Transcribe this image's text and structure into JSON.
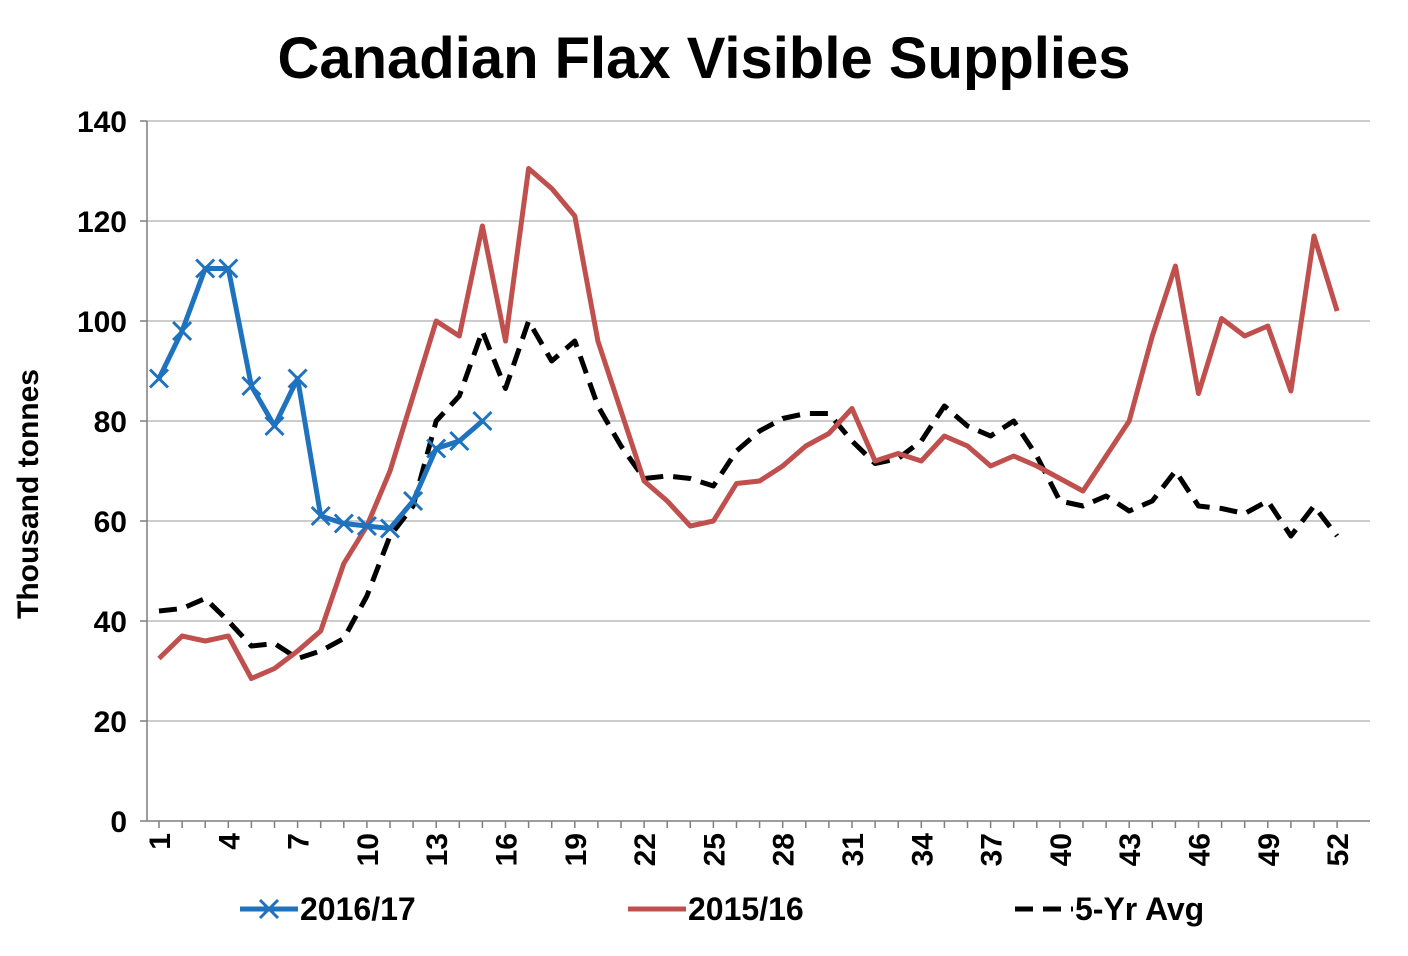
{
  "chart_data": {
    "type": "line",
    "title": "Canadian Flax Visible Supplies",
    "xlabel": "",
    "ylabel": "Thousand tonnes",
    "ylim": [
      0,
      140
    ],
    "yticks": [
      "0",
      "20",
      "40",
      "60",
      "80",
      "100",
      "120",
      "140"
    ],
    "xticks": [
      "1",
      "4",
      "7",
      "10",
      "13",
      "16",
      "19",
      "22",
      "25",
      "28",
      "31",
      "34",
      "37",
      "40",
      "43",
      "46",
      "49",
      "52"
    ],
    "grid": "horizontal",
    "legend_position": "bottom",
    "series": [
      {
        "name": "2016/17",
        "color": "#1F72BE",
        "style": "solid-x-markers",
        "x": [
          1,
          2,
          3,
          4,
          5,
          6,
          7,
          8,
          9,
          10,
          11,
          12,
          13,
          14,
          15
        ],
        "values": [
          88.5,
          98,
          110.5,
          110.5,
          87,
          79,
          88.5,
          61,
          59.5,
          59,
          58.5,
          64,
          74.5,
          76,
          80
        ]
      },
      {
        "name": "2015/16",
        "color": "#C0504D",
        "style": "solid",
        "x": [
          1,
          2,
          3,
          4,
          5,
          6,
          7,
          8,
          9,
          10,
          11,
          12,
          13,
          14,
          15,
          16,
          17,
          18,
          19,
          20,
          21,
          22,
          23,
          24,
          25,
          26,
          27,
          28,
          29,
          30,
          31,
          32,
          33,
          34,
          35,
          36,
          37,
          38,
          39,
          40,
          41,
          42,
          43,
          44,
          45,
          46,
          47,
          48,
          49,
          50,
          51,
          52
        ],
        "values": [
          32.5,
          37,
          36,
          37,
          28.5,
          30.5,
          34,
          38,
          51.5,
          59,
          70,
          85,
          100,
          97,
          119,
          96,
          130.5,
          126.5,
          121,
          96,
          82,
          68,
          64,
          59,
          60,
          67.5,
          68,
          71,
          75,
          77.5,
          82.5,
          72,
          73.5,
          72,
          77,
          75,
          71,
          73,
          71,
          68.5,
          66,
          73,
          80,
          97,
          111,
          85.5,
          100.5,
          97,
          99,
          86,
          117,
          102
        ]
      },
      {
        "name": "5-Yr Avg",
        "color": "#000000",
        "style": "dashed",
        "x": [
          1,
          2,
          3,
          4,
          5,
          6,
          7,
          8,
          9,
          10,
          11,
          12,
          13,
          14,
          15,
          16,
          17,
          18,
          19,
          20,
          21,
          22,
          23,
          24,
          25,
          26,
          27,
          28,
          29,
          30,
          31,
          32,
          33,
          34,
          35,
          36,
          37,
          38,
          39,
          40,
          41,
          42,
          43,
          44,
          45,
          46,
          47,
          48,
          49,
          50,
          51,
          52
        ],
        "values": [
          42,
          42.5,
          44.5,
          40,
          35,
          35.5,
          32.5,
          34,
          36.5,
          45,
          57,
          63,
          80,
          85,
          98,
          86.5,
          100,
          92,
          96,
          83,
          75,
          68.5,
          69,
          68.5,
          67,
          74,
          78,
          80.5,
          81.5,
          81.5,
          76,
          71.5,
          72.5,
          76,
          83,
          79,
          77,
          80,
          73,
          64,
          63,
          65,
          62,
          64,
          70,
          63,
          62.5,
          61.5,
          64,
          57,
          63,
          57
        ]
      }
    ]
  }
}
